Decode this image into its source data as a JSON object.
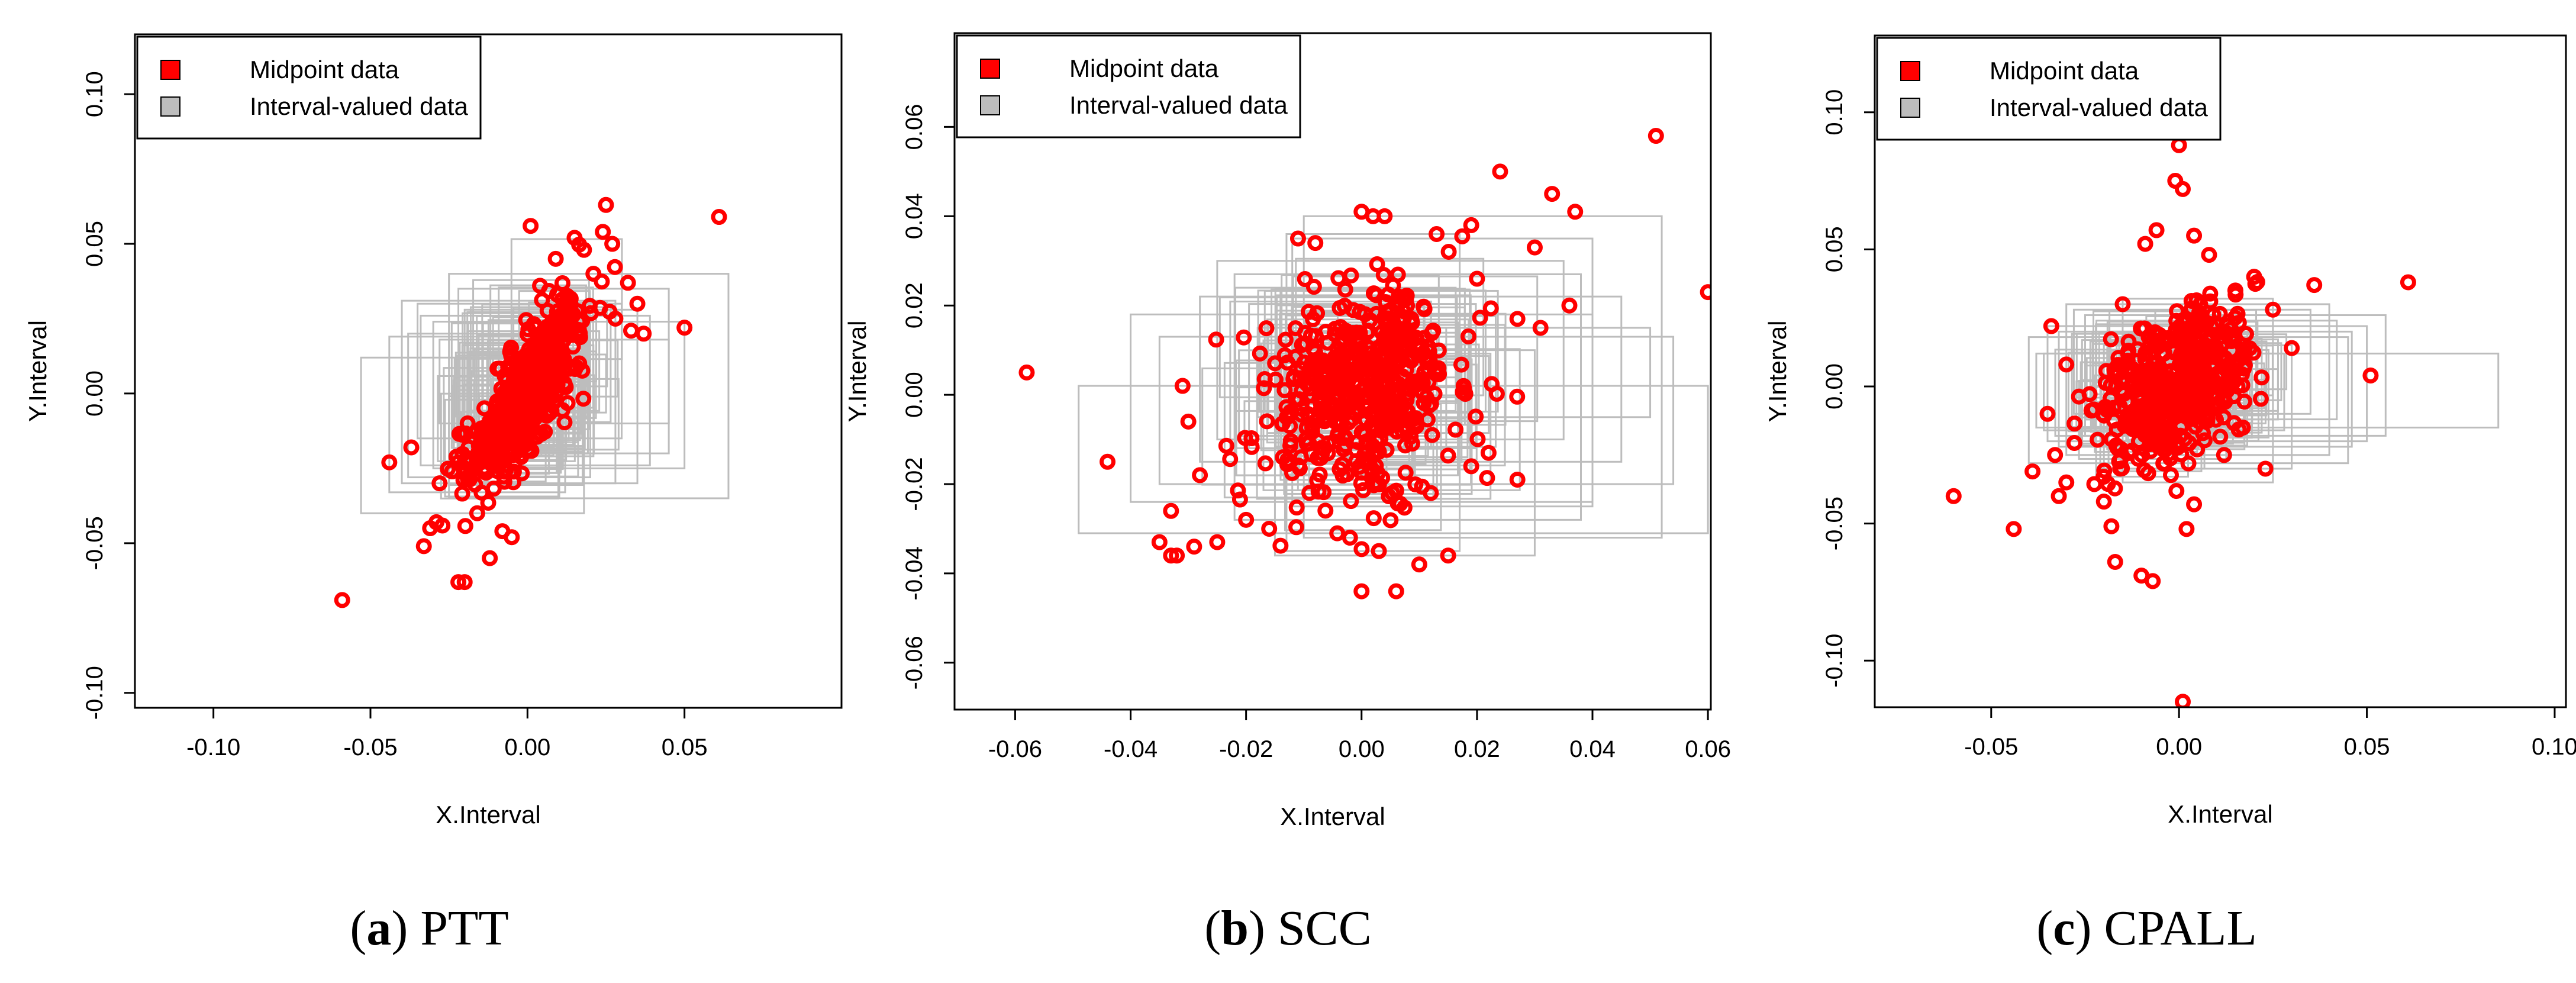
{
  "legend_labels": {
    "midpoint": "Midpoint data",
    "interval": "Interval-valued data"
  },
  "colors": {
    "midpoint": "#ff0000",
    "interval": "#bdbdbd",
    "axis": "#000000"
  },
  "chart_data": [
    {
      "type": "scatter",
      "panel_letter": "a",
      "caption": "PTT",
      "xlabel": "X.Interval",
      "ylabel": "Y.Interval",
      "xlim": [
        -0.125,
        0.1
      ],
      "ylim": [
        -0.105,
        0.12
      ],
      "xticks": [
        -0.1,
        -0.05,
        0.0,
        0.05
      ],
      "xtick_labels": [
        "-0.10",
        "-0.05",
        "0.00",
        "0.05"
      ],
      "yticks": [
        -0.1,
        -0.05,
        0.0,
        0.05,
        0.1
      ],
      "ytick_labels": [
        "-0.10",
        "-0.05",
        "0.00",
        "0.05",
        "0.10"
      ],
      "legend": "top-left",
      "series": [
        {
          "name": "Midpoint data",
          "points": [
            [
              -0.059,
              -0.069
            ],
            [
              0.061,
              0.059
            ],
            [
              0.025,
              0.063
            ],
            [
              0.001,
              0.056
            ],
            [
              0.015,
              0.052
            ],
            [
              0.024,
              0.054
            ],
            [
              0.027,
              0.05
            ],
            [
              0.05,
              0.022
            ],
            [
              0.037,
              0.02
            ],
            [
              -0.02,
              -0.063
            ],
            [
              -0.022,
              -0.063
            ],
            [
              -0.033,
              -0.051
            ],
            [
              -0.031,
              -0.045
            ],
            [
              -0.029,
              -0.043
            ],
            [
              -0.044,
              -0.023
            ],
            [
              -0.037,
              -0.018
            ],
            [
              -0.008,
              -0.046
            ],
            [
              -0.005,
              -0.048
            ],
            [
              0.009,
              0.045
            ],
            [
              0.018,
              0.048
            ],
            [
              0.032,
              0.037
            ],
            [
              0.035,
              0.03
            ],
            [
              -0.028,
              -0.03
            ],
            [
              -0.024,
              -0.026
            ],
            [
              0.028,
              0.025
            ],
            [
              0.033,
              0.021
            ],
            [
              -0.012,
              -0.055
            ],
            [
              0.004,
              0.036
            ],
            [
              -0.016,
              -0.04
            ],
            [
              0.021,
              0.04
            ]
          ]
        },
        {
          "name": "Interval-valued data",
          "rects": [
            [
              -0.053,
              -0.04,
              0.018,
              0.012
            ],
            [
              -0.044,
              -0.033,
              0.012,
              0.019
            ],
            [
              -0.034,
              -0.024,
              0.039,
              0.026
            ],
            [
              -0.04,
              -0.03,
              0.028,
              0.031
            ],
            [
              -0.025,
              -0.035,
              0.064,
              0.04
            ],
            [
              -0.035,
              -0.015,
              0.03,
              0.03
            ],
            [
              -0.03,
              -0.025,
              0.05,
              0.024
            ],
            [
              -0.022,
              -0.02,
              0.045,
              0.035
            ],
            [
              -0.038,
              -0.028,
              0.02,
              0.02
            ],
            [
              -0.02,
              -0.03,
              0.035,
              0.028
            ],
            [
              -0.028,
              -0.01,
              0.045,
              0.018
            ]
          ]
        }
      ]
    },
    {
      "type": "scatter",
      "panel_letter": "b",
      "caption": "SCC",
      "xlabel": "X.Interval",
      "ylabel": "Y.Interval",
      "xlim": [
        -0.0705,
        0.0605
      ],
      "ylim": [
        -0.0705,
        0.081
      ],
      "xticks": [
        -0.06,
        -0.04,
        -0.02,
        0.0,
        0.02,
        0.04,
        0.06
      ],
      "xtick_labels": [
        "-0.06",
        "-0.04",
        "-0.02",
        "0.00",
        "0.02",
        "0.04",
        "0.06"
      ],
      "yticks": [
        -0.06,
        -0.04,
        -0.02,
        0.0,
        0.02,
        0.04,
        0.06
      ],
      "ytick_labels": [
        "-0.06",
        "-0.04",
        "-0.02",
        "0.00",
        "0.02",
        "0.04",
        "0.06"
      ],
      "legend": "top-left",
      "series": [
        {
          "name": "Midpoint data",
          "points": [
            [
              -0.058,
              0.005
            ],
            [
              -0.044,
              -0.015
            ],
            [
              0.051,
              0.058
            ],
            [
              0.06,
              0.023
            ],
            [
              0.024,
              0.05
            ],
            [
              0.033,
              0.045
            ],
            [
              0.037,
              0.041
            ],
            [
              0.0,
              0.041
            ],
            [
              0.002,
              0.04
            ],
            [
              0.004,
              0.04
            ],
            [
              -0.011,
              0.035
            ],
            [
              0.019,
              0.038
            ],
            [
              -0.008,
              0.034
            ],
            [
              0.013,
              0.036
            ],
            [
              0.0,
              -0.044
            ],
            [
              0.006,
              -0.044
            ],
            [
              0.015,
              -0.036
            ],
            [
              -0.035,
              -0.033
            ],
            [
              -0.033,
              -0.036
            ],
            [
              -0.032,
              -0.036
            ],
            [
              -0.029,
              -0.034
            ],
            [
              -0.025,
              -0.033
            ],
            [
              -0.033,
              -0.026
            ],
            [
              -0.028,
              -0.018
            ],
            [
              -0.03,
              -0.006
            ],
            [
              -0.031,
              0.002
            ],
            [
              0.01,
              -0.038
            ],
            [
              0.003,
              -0.035
            ],
            [
              0.03,
              0.033
            ],
            [
              0.027,
              0.017
            ],
            [
              0.036,
              0.02
            ],
            [
              0.031,
              0.015
            ],
            [
              0.022,
              -0.013
            ],
            [
              0.027,
              -0.019
            ],
            [
              0.019,
              -0.016
            ],
            [
              -0.02,
              -0.028
            ],
            [
              -0.016,
              -0.03
            ],
            [
              -0.002,
              -0.032
            ],
            [
              0.02,
              0.026
            ],
            [
              0.012,
              -0.022
            ]
          ]
        },
        {
          "name": "Interval-valued data",
          "rects": [
            [
              -0.049,
              -0.031,
              0.06,
              0.002
            ],
            [
              -0.04,
              -0.024,
              0.04,
              0.018
            ],
            [
              -0.035,
              -0.02,
              0.054,
              0.013
            ],
            [
              -0.022,
              -0.028,
              0.038,
              0.027
            ],
            [
              -0.013,
              -0.035,
              0.017,
              0.036
            ],
            [
              -0.01,
              -0.032,
              0.052,
              0.04
            ],
            [
              -0.025,
              -0.01,
              0.035,
              0.03
            ],
            [
              -0.015,
              -0.036,
              0.03,
              0.01
            ],
            [
              -0.028,
              -0.015,
              0.045,
              0.022
            ],
            [
              -0.012,
              -0.025,
              0.04,
              0.035
            ],
            [
              -0.018,
              -0.005,
              0.05,
              0.015
            ]
          ]
        }
      ]
    },
    {
      "type": "scatter",
      "panel_letter": "c",
      "caption": "CPALL",
      "xlabel": "X.Interval",
      "ylabel": "Y.Interval",
      "xlim": [
        -0.081,
        0.103
      ],
      "ylim": [
        -0.117,
        0.128
      ],
      "xticks": [
        -0.05,
        0.0,
        0.05,
        0.1
      ],
      "xtick_labels": [
        "-0.05",
        "0.00",
        "0.05",
        "0.10"
      ],
      "yticks": [
        -0.1,
        -0.05,
        0.0,
        0.05,
        0.1
      ],
      "ytick_labels": [
        "-0.10",
        "-0.05",
        "0.00",
        "0.05",
        "0.10"
      ],
      "legend": "top-left",
      "series": [
        {
          "name": "Midpoint data",
          "points": [
            [
              -0.06,
              -0.04
            ],
            [
              -0.044,
              -0.052
            ],
            [
              0.061,
              0.038
            ],
            [
              0.051,
              0.004
            ],
            [
              0.0,
              0.088
            ],
            [
              -0.001,
              0.075
            ],
            [
              0.001,
              0.072
            ],
            [
              -0.017,
              -0.064
            ],
            [
              -0.01,
              -0.069
            ],
            [
              -0.007,
              -0.071
            ],
            [
              0.001,
              -0.115
            ],
            [
              0.002,
              -0.052
            ],
            [
              0.004,
              -0.043
            ],
            [
              0.036,
              0.037
            ],
            [
              -0.03,
              -0.035
            ],
            [
              -0.032,
              -0.04
            ],
            [
              -0.033,
              -0.025
            ],
            [
              -0.035,
              -0.01
            ],
            [
              -0.039,
              -0.031
            ],
            [
              -0.034,
              0.022
            ],
            [
              -0.03,
              0.008
            ],
            [
              -0.009,
              0.052
            ],
            [
              -0.006,
              0.057
            ],
            [
              0.004,
              0.055
            ],
            [
              0.008,
              0.048
            ],
            [
              0.02,
              0.04
            ],
            [
              0.025,
              0.028
            ],
            [
              0.023,
              -0.03
            ],
            [
              0.017,
              -0.015
            ],
            [
              -0.018,
              -0.051
            ],
            [
              -0.02,
              -0.042
            ],
            [
              0.015,
              0.035
            ],
            [
              0.012,
              -0.025
            ],
            [
              -0.015,
              0.03
            ],
            [
              0.03,
              0.014
            ]
          ]
        },
        {
          "name": "Interval-valued data",
          "rects": [
            [
              -0.038,
              -0.015,
              0.085,
              0.012
            ],
            [
              -0.04,
              -0.028,
              0.045,
              0.018
            ],
            [
              -0.035,
              -0.02,
              0.05,
              0.022
            ],
            [
              -0.03,
              -0.025,
              0.04,
              0.03
            ],
            [
              -0.025,
              -0.018,
              0.055,
              0.026
            ],
            [
              -0.028,
              -0.01,
              0.035,
              0.028
            ],
            [
              -0.02,
              -0.03,
              0.03,
              0.015
            ],
            [
              -0.032,
              -0.022,
              0.046,
              0.02
            ],
            [
              -0.022,
              -0.012,
              0.042,
              0.024
            ],
            [
              -0.036,
              -0.016,
              0.028,
              0.012
            ],
            [
              -0.015,
              -0.035,
              0.025,
              0.032
            ]
          ]
        }
      ]
    }
  ]
}
